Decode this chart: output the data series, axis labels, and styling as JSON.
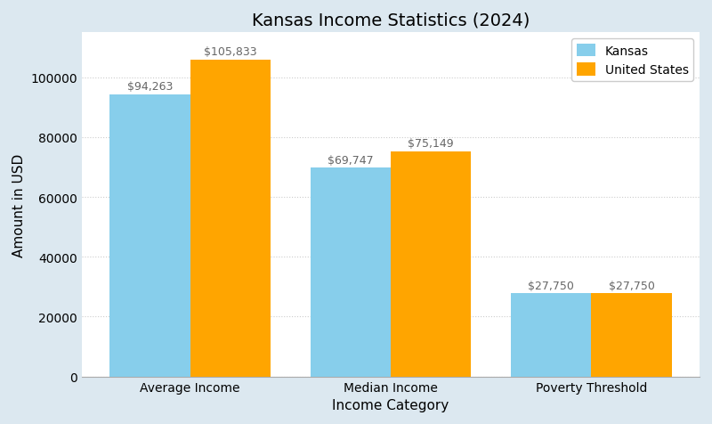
{
  "title": "Kansas Income Statistics (2024)",
  "xlabel": "Income Category",
  "ylabel": "Amount in USD",
  "categories": [
    "Average Income",
    "Median Income",
    "Poverty Threshold"
  ],
  "kansas_values": [
    94263,
    69747,
    27750
  ],
  "us_values": [
    105833,
    75149,
    27750
  ],
  "kansas_color": "#87CEEB",
  "us_color": "#FFA500",
  "legend_labels": [
    "Kansas",
    "United States"
  ],
  "bar_width": 0.4,
  "ylim": [
    0,
    115000
  ],
  "yticks": [
    0,
    20000,
    40000,
    60000,
    80000,
    100000
  ],
  "figure_bg_color": "#dce8f0",
  "plot_bg_color": "#ffffff",
  "grid_color": "#cccccc",
  "title_fontsize": 14,
  "label_fontsize": 11,
  "tick_fontsize": 10,
  "annotation_fontsize": 9,
  "annotation_color": "#666666"
}
